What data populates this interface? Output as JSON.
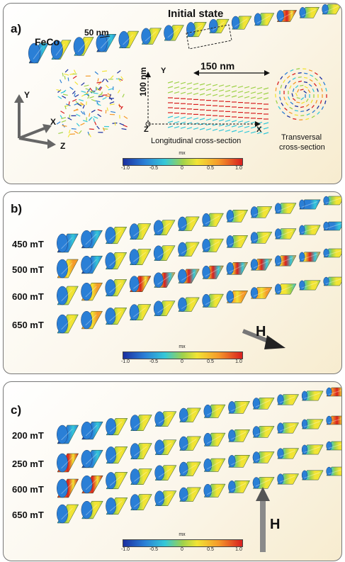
{
  "panel_a": {
    "label": "a)",
    "title": "Initial state",
    "material": "FeCo",
    "spacing": "50 nm",
    "length": "150 nm",
    "diameter": "100 nm",
    "axis_y": "Y",
    "axis_x": "X",
    "axis_z": "Z",
    "cs_axis_y": "Y",
    "cs_axis_x": "X",
    "cs_axis_z": "Z",
    "longitudinal": "Longitudinal cross-section",
    "transversal_1": "Transversal",
    "transversal_2": "cross-section"
  },
  "panel_b": {
    "label": "b)",
    "fields": [
      "450 mT",
      "500 mT",
      "600 mT",
      "650 mT"
    ],
    "h_label": "H"
  },
  "panel_c": {
    "label": "c)",
    "fields": [
      "200 mT",
      "250 mT",
      "600 mT",
      "650 mT"
    ],
    "h_label": "H"
  },
  "colorbar": {
    "title": "mx",
    "ticks": [
      "-1.0",
      "-0.5",
      "0",
      "0.5",
      "1.0"
    ],
    "colors": [
      "#1a2fa0",
      "#2a7fd6",
      "#35c8d8",
      "#9fd24a",
      "#f2e434",
      "#f59a2a",
      "#d81f1f"
    ]
  }
}
